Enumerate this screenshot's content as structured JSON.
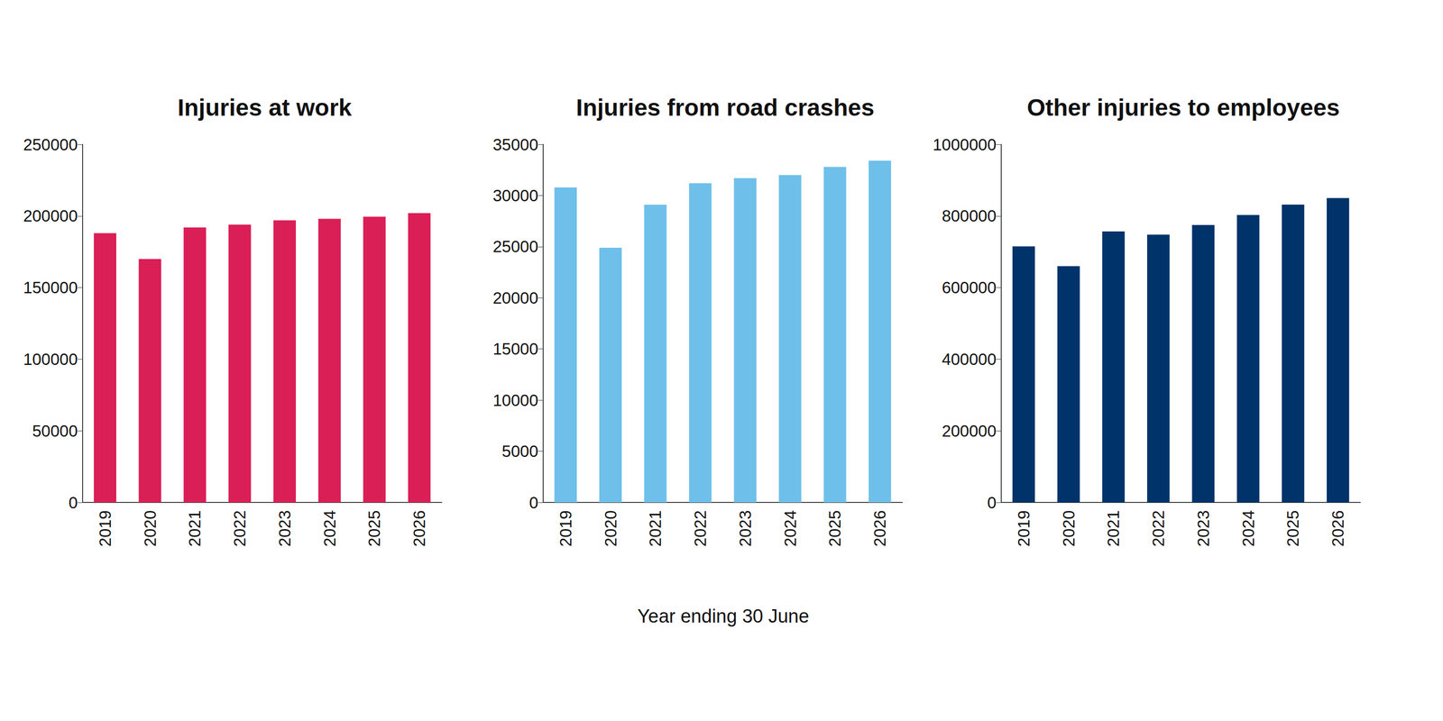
{
  "chart_data": [
    {
      "type": "bar",
      "title": "Injuries at work",
      "categories": [
        "2019",
        "2020",
        "2021",
        "2022",
        "2023",
        "2024",
        "2025",
        "2026"
      ],
      "values": [
        188000,
        170000,
        192000,
        194000,
        197000,
        198000,
        199500,
        202000
      ],
      "color": "#da1e56",
      "ylim": [
        0,
        250000
      ],
      "yticks": [
        0,
        50000,
        100000,
        150000,
        200000,
        250000
      ],
      "grid": false
    },
    {
      "type": "bar",
      "title": "Injuries from road crashes",
      "xlabel": "Year ending 30 June",
      "categories": [
        "2019",
        "2020",
        "2021",
        "2022",
        "2023",
        "2024",
        "2025",
        "2026"
      ],
      "values": [
        30800,
        24900,
        29100,
        31200,
        31700,
        32000,
        32800,
        33400
      ],
      "color": "#6ec0ea",
      "ylim": [
        0,
        35000
      ],
      "yticks": [
        0,
        5000,
        10000,
        15000,
        20000,
        25000,
        30000,
        35000
      ],
      "grid": false
    },
    {
      "type": "bar",
      "title": "Other injuries to employees",
      "categories": [
        "2019",
        "2020",
        "2021",
        "2022",
        "2023",
        "2024",
        "2025",
        "2026"
      ],
      "values": [
        715000,
        660000,
        757000,
        748000,
        775000,
        803000,
        832000,
        850000
      ],
      "color": "#00336a",
      "ylim": [
        0,
        1000000
      ],
      "yticks": [
        0,
        200000,
        400000,
        600000,
        800000,
        1000000
      ],
      "grid": false
    }
  ]
}
